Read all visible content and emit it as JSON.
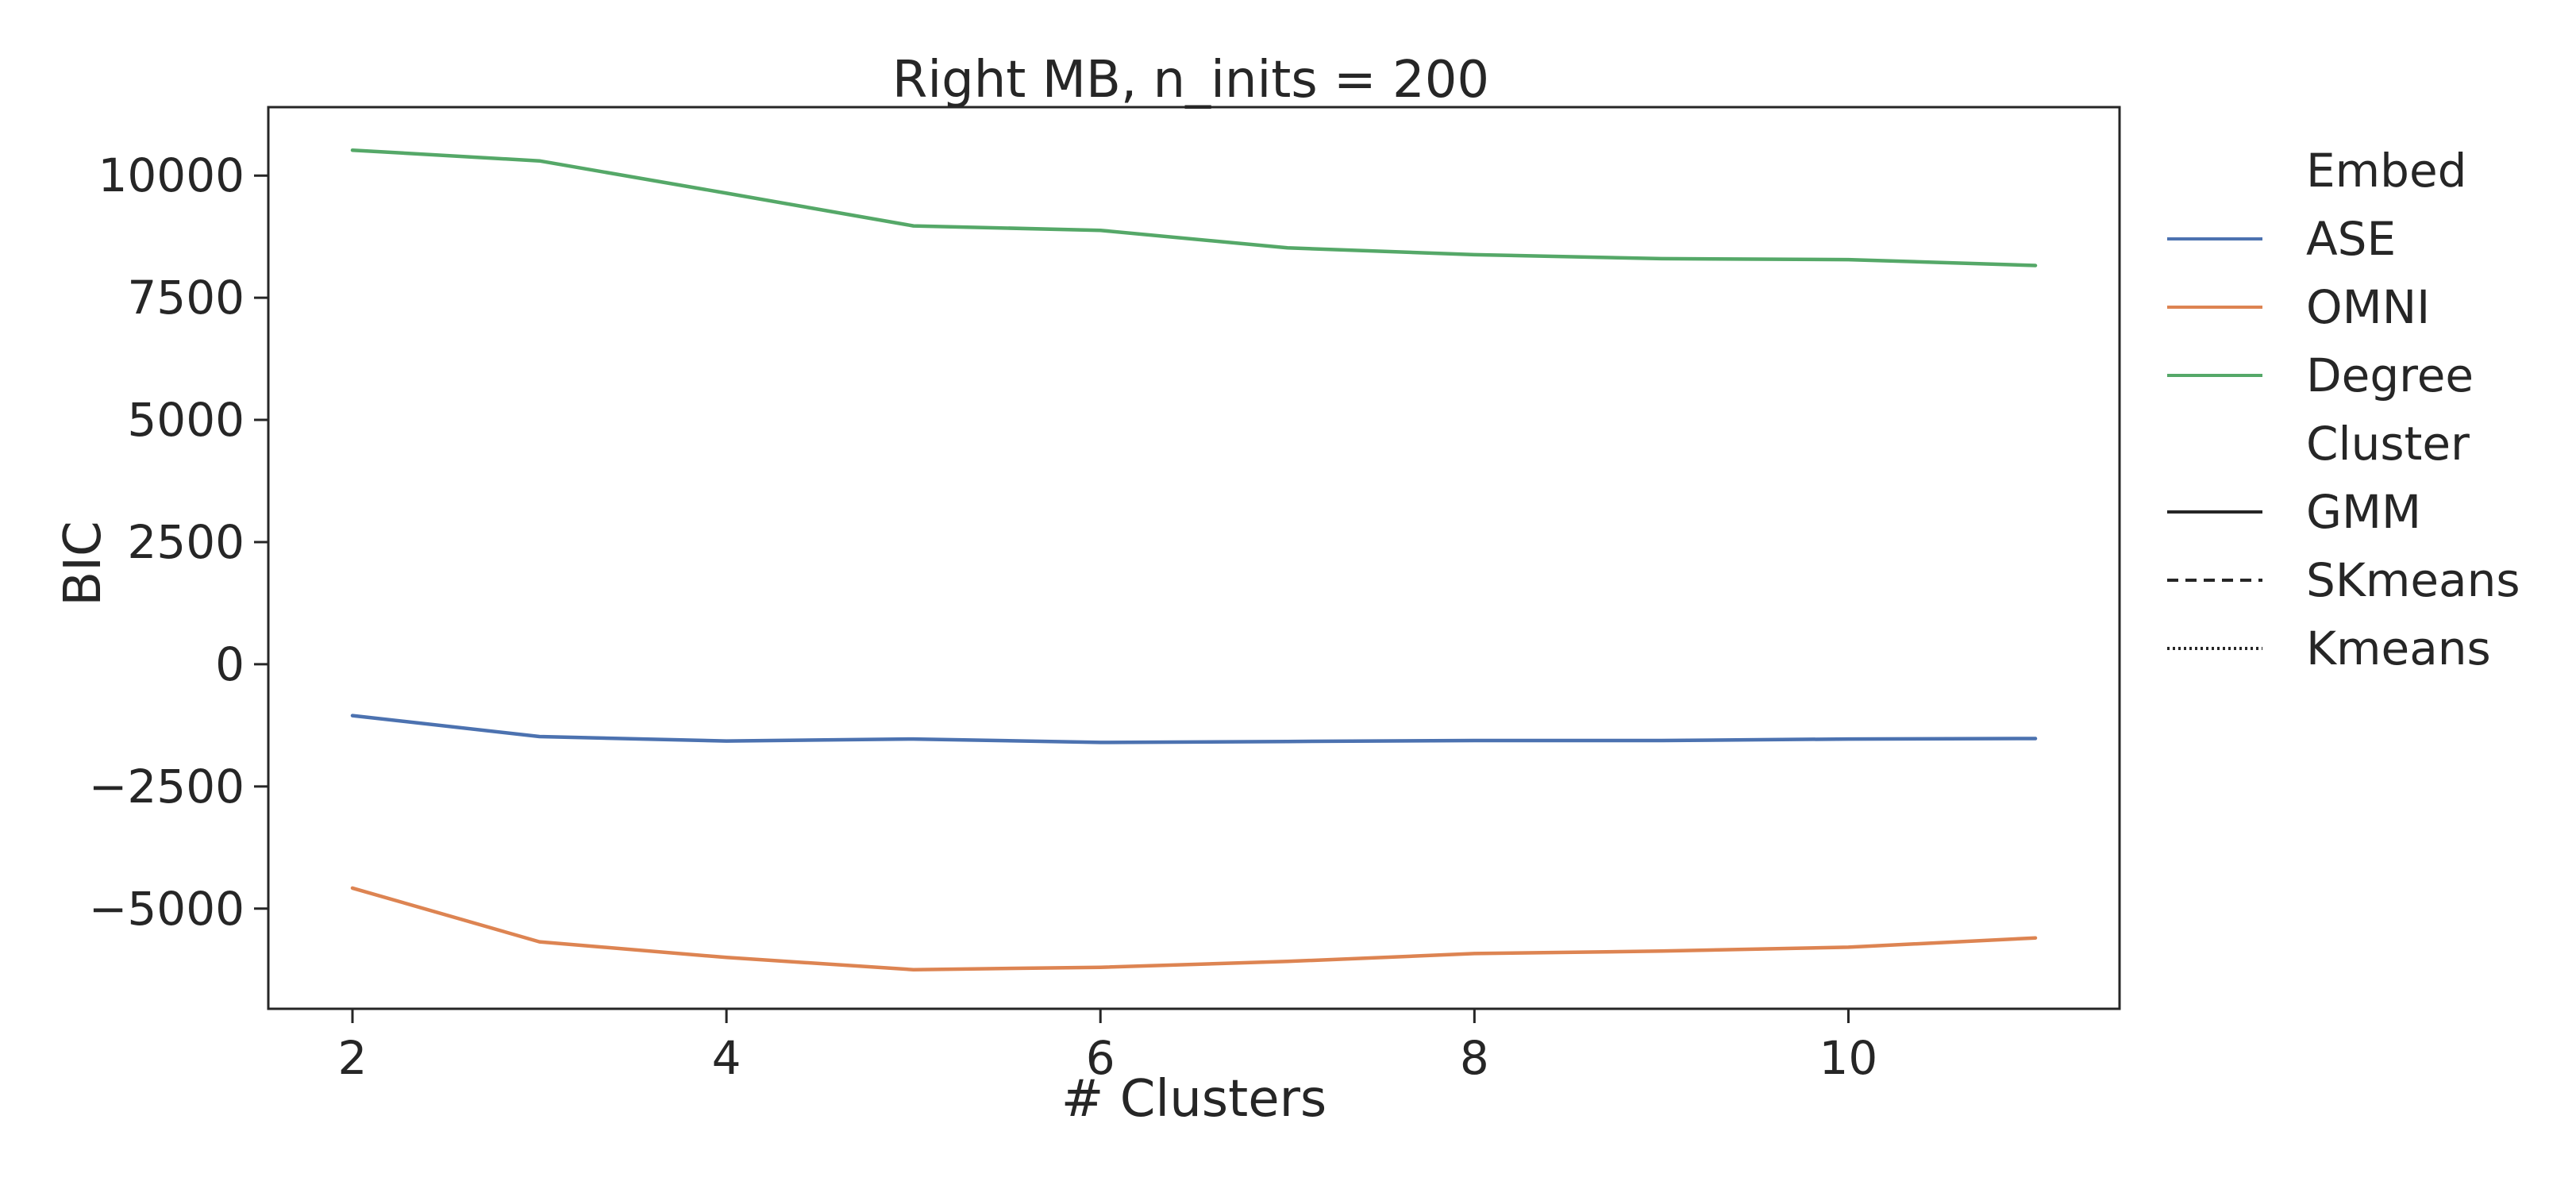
{
  "chart_data": {
    "type": "line",
    "title": "Right MB, n_inits = 200",
    "xlabel": "# Clusters",
    "ylabel": "BIC",
    "xlim": [
      1.55,
      11.45
    ],
    "ylim": [
      -7050,
      11400
    ],
    "xticks": [
      2,
      4,
      6,
      8,
      10
    ],
    "yticks": [
      10000,
      7500,
      5000,
      2500,
      0,
      -2500,
      -5000
    ],
    "x": [
      2,
      3,
      4,
      5,
      6,
      7,
      8,
      9,
      10,
      11
    ],
    "series": [
      {
        "name": "ASE",
        "color": "#4c72b0",
        "style": "solid",
        "values": [
          -1050,
          -1480,
          -1570,
          -1530,
          -1600,
          -1580,
          -1560,
          -1560,
          -1530,
          -1520
        ]
      },
      {
        "name": "OMNI",
        "color": "#dd8452",
        "style": "solid",
        "values": [
          -4580,
          -5680,
          -6000,
          -6250,
          -6200,
          -6080,
          -5920,
          -5870,
          -5790,
          -5600
        ]
      },
      {
        "name": "Degree",
        "color": "#55a868",
        "style": "solid",
        "values": [
          10520,
          10300,
          9640,
          8970,
          8880,
          8520,
          8380,
          8300,
          8280,
          8160
        ]
      }
    ],
    "legend": {
      "placement": "outside right",
      "groups": [
        {
          "header": "Embed",
          "entries": [
            {
              "label": "ASE",
              "color": "#4c72b0",
              "style": "solid"
            },
            {
              "label": "OMNI",
              "color": "#dd8452",
              "style": "solid"
            },
            {
              "label": "Degree",
              "color": "#55a868",
              "style": "solid"
            }
          ]
        },
        {
          "header": "Cluster",
          "entries": [
            {
              "label": "GMM",
              "color": "#262626",
              "style": "solid"
            },
            {
              "label": "SKmeans",
              "color": "#262626",
              "style": "dashed"
            },
            {
              "label": "Kmeans",
              "color": "#262626",
              "style": "dotted"
            }
          ]
        }
      ]
    },
    "grid": false
  }
}
